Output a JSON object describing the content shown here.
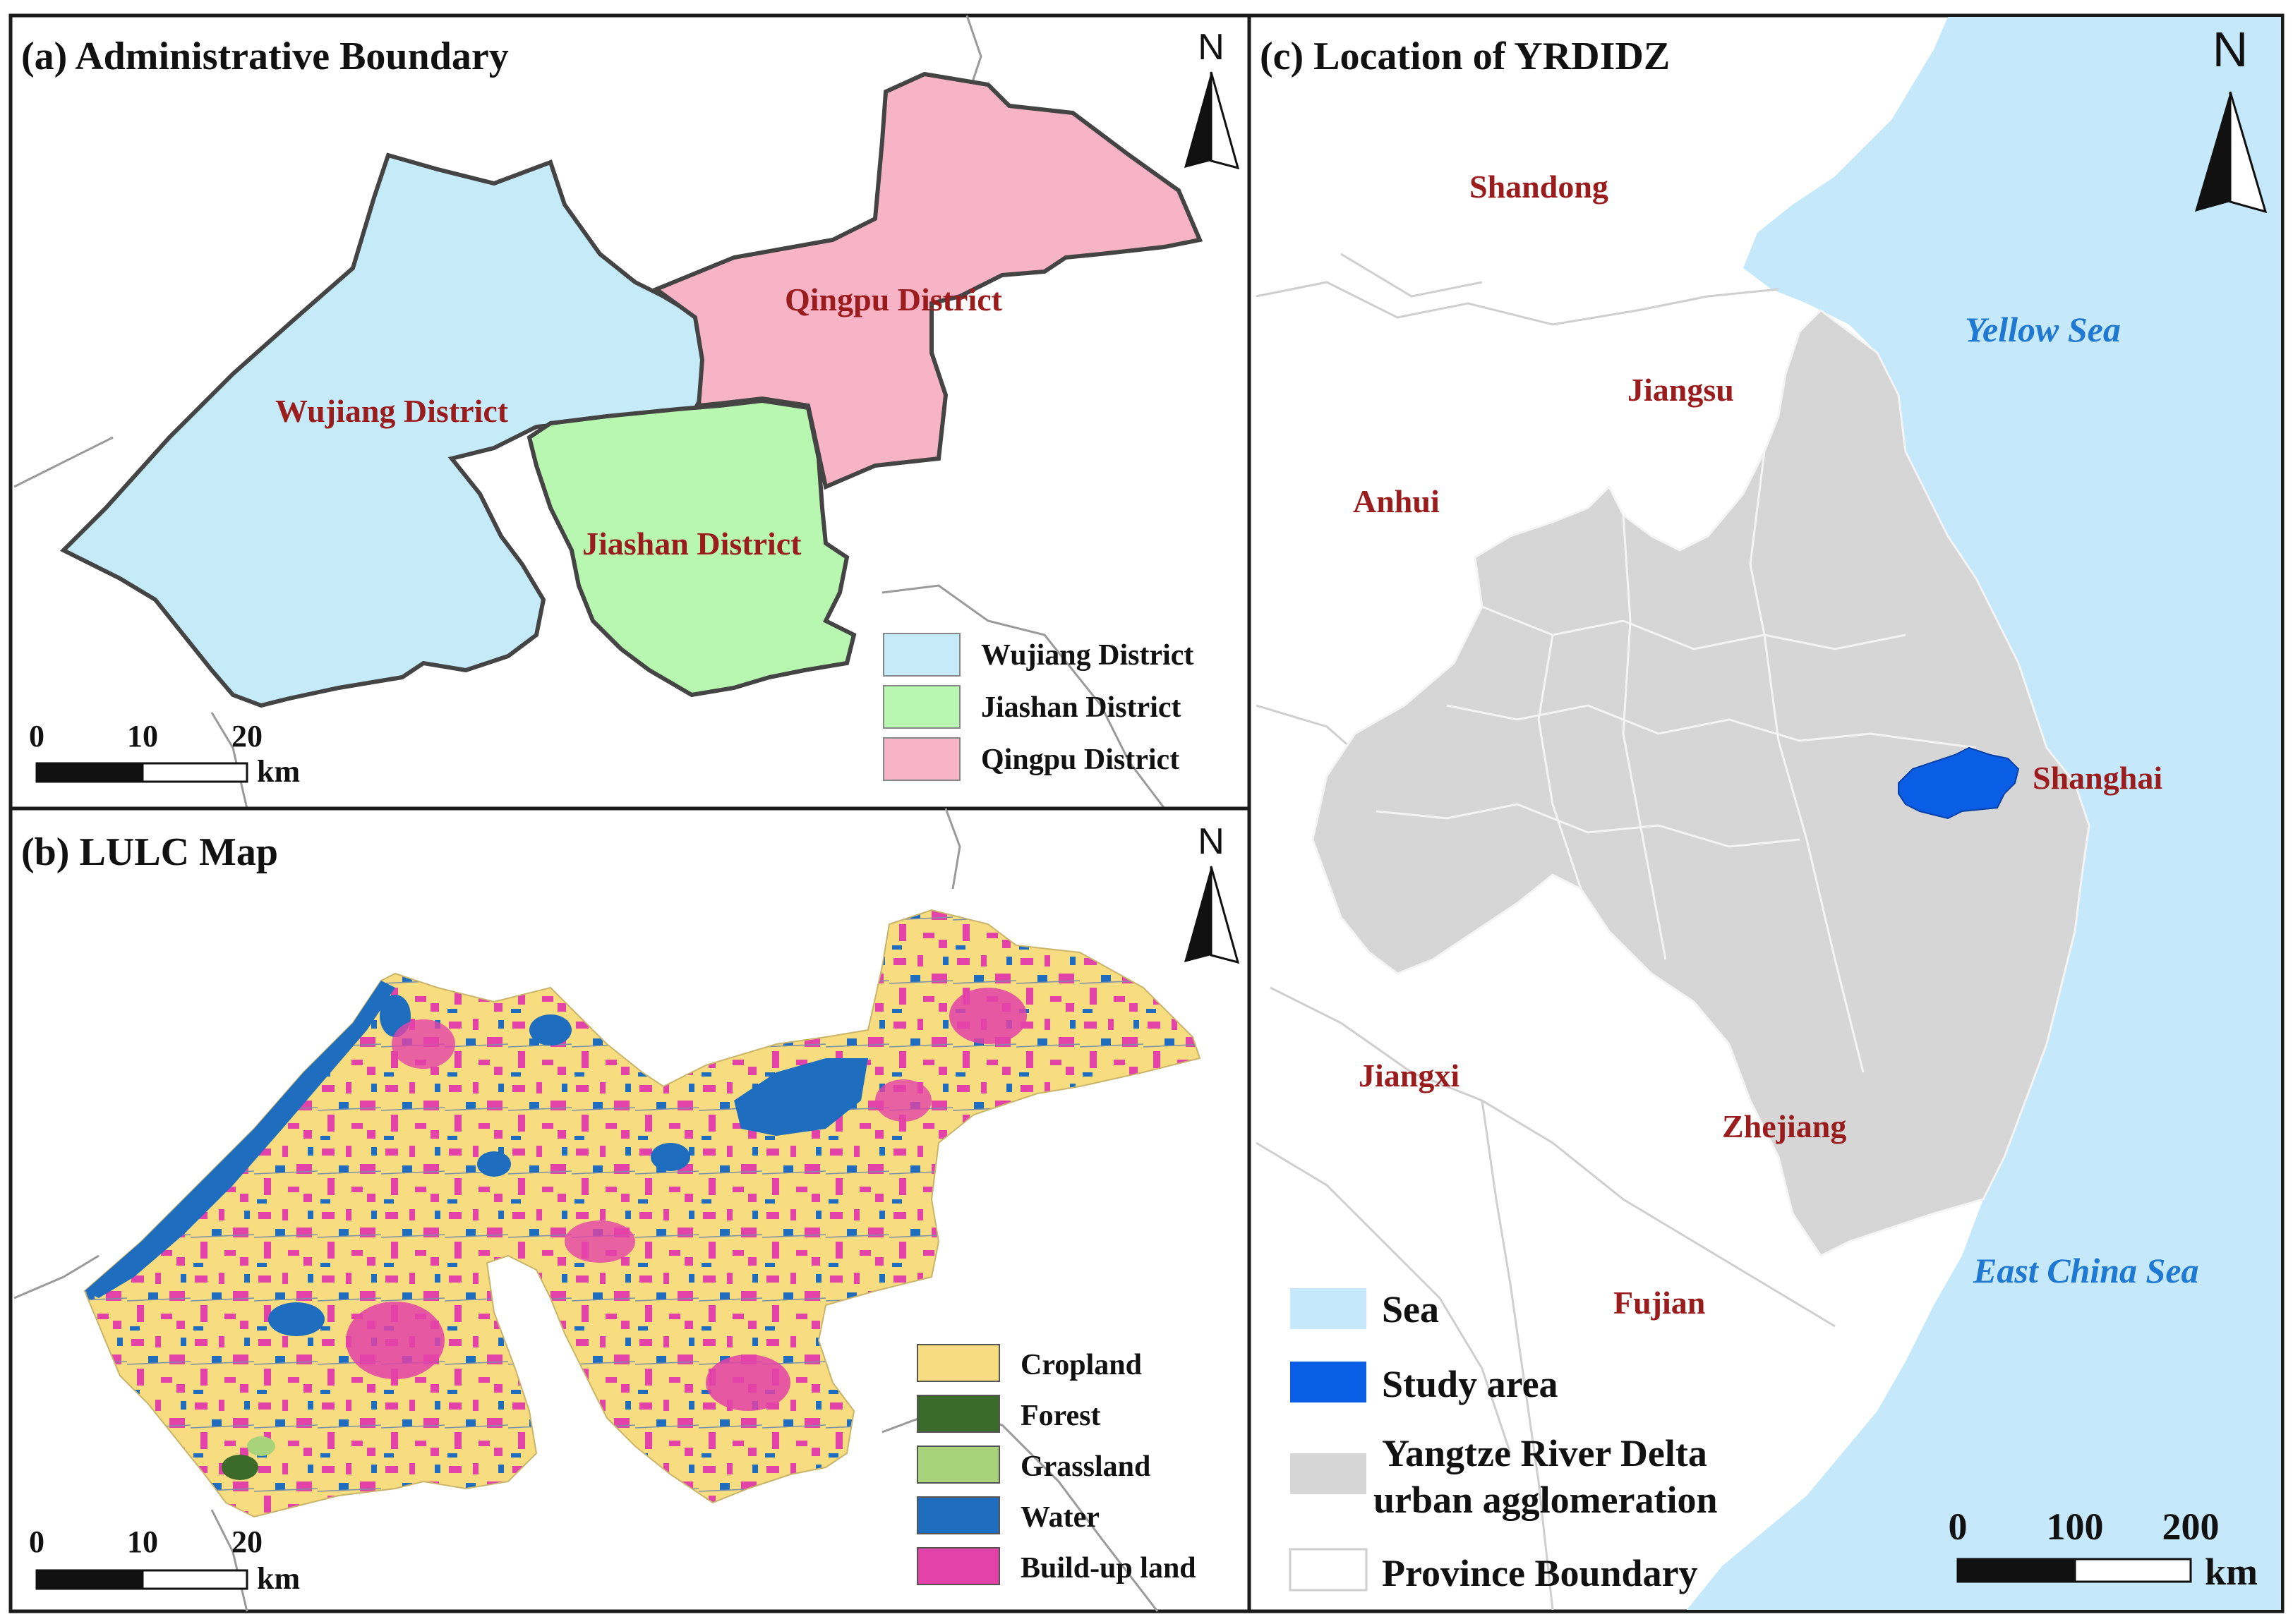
{
  "panels": {
    "a": {
      "title": "(a) Administrative Boundary",
      "districts": [
        {
          "name": "Wujiang District",
          "color": "#c5eaf8"
        },
        {
          "name": "Jiashan District",
          "color": "#b7f7b0"
        },
        {
          "name": "Qingpu District",
          "color": "#f7b4c6"
        }
      ],
      "legend": [
        "Wujiang District",
        "Jiashan District",
        "Qingpu District"
      ],
      "scale": {
        "ticks": [
          "0",
          "10",
          "20"
        ],
        "unit": "km"
      },
      "north": "N"
    },
    "b": {
      "title": "(b) LULC Map",
      "classes": [
        {
          "name": "Cropland",
          "color": "#f7dd80"
        },
        {
          "name": "Forest",
          "color": "#3b6b2b"
        },
        {
          "name": "Grassland",
          "color": "#a9d37a"
        },
        {
          "name": "Water",
          "color": "#1f6dbf"
        },
        {
          "name": "Build-up land",
          "color": "#e342a8"
        }
      ],
      "scale": {
        "ticks": [
          "0",
          "10",
          "20"
        ],
        "unit": "km"
      },
      "north": "N"
    },
    "c": {
      "title": "(c) Location of YRDIDZ",
      "provinces": [
        "Shandong",
        "Jiangsu",
        "Anhui",
        "Shanghai",
        "Jiangxi",
        "Zhejiang",
        "Fujian"
      ],
      "seas": [
        "Yellow Sea",
        "East China Sea"
      ],
      "legend": [
        {
          "name": "Sea",
          "color": "#c5e8fa"
        },
        {
          "name": "Study area",
          "color": "#0a5ee6"
        },
        {
          "name": "Yangtze River Delta urban agglomeration",
          "line1": "Yangtze River Delta",
          "line2": "urban agglomeration",
          "color": "#d6d6d6"
        },
        {
          "name": "Province Boundary",
          "color": "#ffffff"
        }
      ],
      "scale": {
        "ticks": [
          "0",
          "100",
          "200"
        ],
        "unit": "km"
      },
      "north": "N"
    }
  }
}
